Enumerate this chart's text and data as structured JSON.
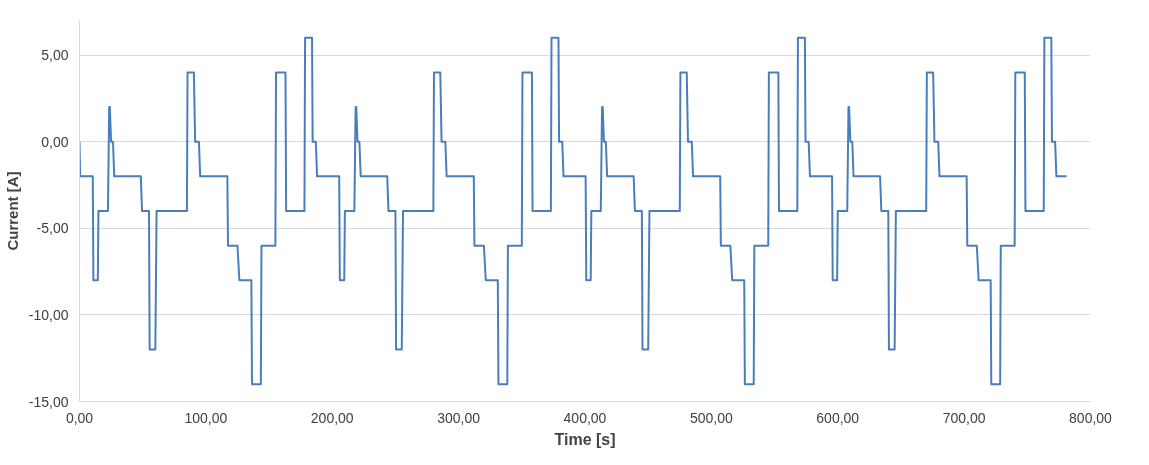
{
  "chart_data": {
    "type": "line",
    "xlabel": "Time [s]",
    "ylabel": "Current [A]",
    "xlim": [
      0,
      800
    ],
    "xticks": [
      {
        "value": 0,
        "label": "0,00"
      },
      {
        "value": 100,
        "label": "100,00"
      },
      {
        "value": 200,
        "label": "200,00"
      },
      {
        "value": 300,
        "label": "300,00"
      },
      {
        "value": 400,
        "label": "400,00"
      },
      {
        "value": 500,
        "label": "500,00"
      },
      {
        "value": 600,
        "label": "600,00"
      },
      {
        "value": 700,
        "label": "700,00"
      },
      {
        "value": 800,
        "label": "800,00"
      }
    ],
    "ylim": [
      -15,
      7
    ],
    "yticks": [
      {
        "value": -15,
        "label": "-15,00"
      },
      {
        "value": -10,
        "label": "-10,00"
      },
      {
        "value": -5,
        "label": "-5,00"
      },
      {
        "value": 0,
        "label": "0,00"
      },
      {
        "value": 5,
        "label": "5,00"
      }
    ],
    "grid": "y",
    "marker": "none",
    "line_style": "solid",
    "series": [
      {
        "color": "#4a7ebb",
        "x": [
          0,
          0.5,
          10.5,
          11,
          14.5,
          15,
          22.5,
          23.5,
          24,
          25,
          26.5,
          27.5,
          48.5,
          49.5,
          55,
          55.5,
          60,
          61,
          85,
          85.5,
          90.5,
          91.5,
          94.5,
          95.5,
          117,
          117.5,
          125,
          126.5,
          136,
          136.5,
          143.5,
          144,
          155,
          155.5,
          163,
          163.5,
          178,
          178.5,
          184,
          184.5,
          187,
          188,
          205.5,
          206,
          209.5,
          210,
          217.5,
          218.5,
          219,
          220,
          221.5,
          222.5,
          243.5,
          244.5,
          250,
          250.5,
          255,
          256,
          280,
          280.5,
          285.5,
          286.5,
          289.5,
          290.5,
          312,
          312.5,
          320,
          321.5,
          331,
          331.5,
          338.5,
          339,
          350,
          350.5,
          358,
          358.5,
          373,
          373.5,
          379,
          379.5,
          382,
          383,
          400.5,
          401,
          404.5,
          405,
          412.5,
          413.5,
          414,
          415,
          416.5,
          417.5,
          438.5,
          439.5,
          445,
          445.5,
          450,
          451,
          475,
          475.5,
          480.5,
          481.5,
          484.5,
          485.5,
          507,
          507.5,
          515,
          516.5,
          526,
          526.5,
          533.5,
          534,
          545,
          545.5,
          553,
          553.5,
          568,
          568.5,
          574,
          574.5,
          577,
          578,
          595.5,
          596,
          599.5,
          600,
          607.5,
          608.5,
          609,
          610,
          611.5,
          612.5,
          633.5,
          634.5,
          640,
          640.5,
          645,
          646,
          670,
          670.5,
          675.5,
          676.5,
          679.5,
          680.5,
          702,
          702.5,
          710,
          711.5,
          721,
          721.5,
          728.5,
          729,
          740,
          740.5,
          748,
          748.5,
          763,
          763.5,
          769,
          769.5,
          772,
          773,
          781
        ],
        "values": [
          0,
          -2,
          -2,
          -8,
          -8,
          -4,
          -4,
          2,
          2,
          0,
          0,
          -2,
          -2,
          -4,
          -4,
          -12,
          -12,
          -4,
          -4,
          4,
          4,
          0,
          0,
          -2,
          -2,
          -6,
          -6,
          -8,
          -8,
          -14,
          -14,
          -6,
          -6,
          4,
          4,
          -4,
          -4,
          6,
          6,
          0,
          0,
          -2,
          -2,
          -8,
          -8,
          -4,
          -4,
          2,
          2,
          0,
          0,
          -2,
          -2,
          -4,
          -4,
          -12,
          -12,
          -4,
          -4,
          4,
          4,
          0,
          0,
          -2,
          -2,
          -6,
          -6,
          -8,
          -8,
          -14,
          -14,
          -6,
          -6,
          4,
          4,
          -4,
          -4,
          6,
          6,
          0,
          0,
          -2,
          -2,
          -8,
          -8,
          -4,
          -4,
          2,
          2,
          0,
          0,
          -2,
          -2,
          -4,
          -4,
          -12,
          -12,
          -4,
          -4,
          4,
          4,
          0,
          0,
          -2,
          -2,
          -6,
          -6,
          -8,
          -8,
          -14,
          -14,
          -6,
          -6,
          4,
          4,
          -4,
          -4,
          6,
          6,
          0,
          0,
          -2,
          -2,
          -8,
          -8,
          -4,
          -4,
          2,
          2,
          0,
          0,
          -2,
          -2,
          -4,
          -4,
          -12,
          -12,
          -4,
          -4,
          4,
          4,
          0,
          0,
          -2,
          -2,
          -6,
          -6,
          -8,
          -8,
          -14,
          -14,
          -6,
          -6,
          4,
          4,
          -4,
          -4,
          6,
          6,
          0,
          0,
          -2,
          -2
        ]
      }
    ]
  }
}
